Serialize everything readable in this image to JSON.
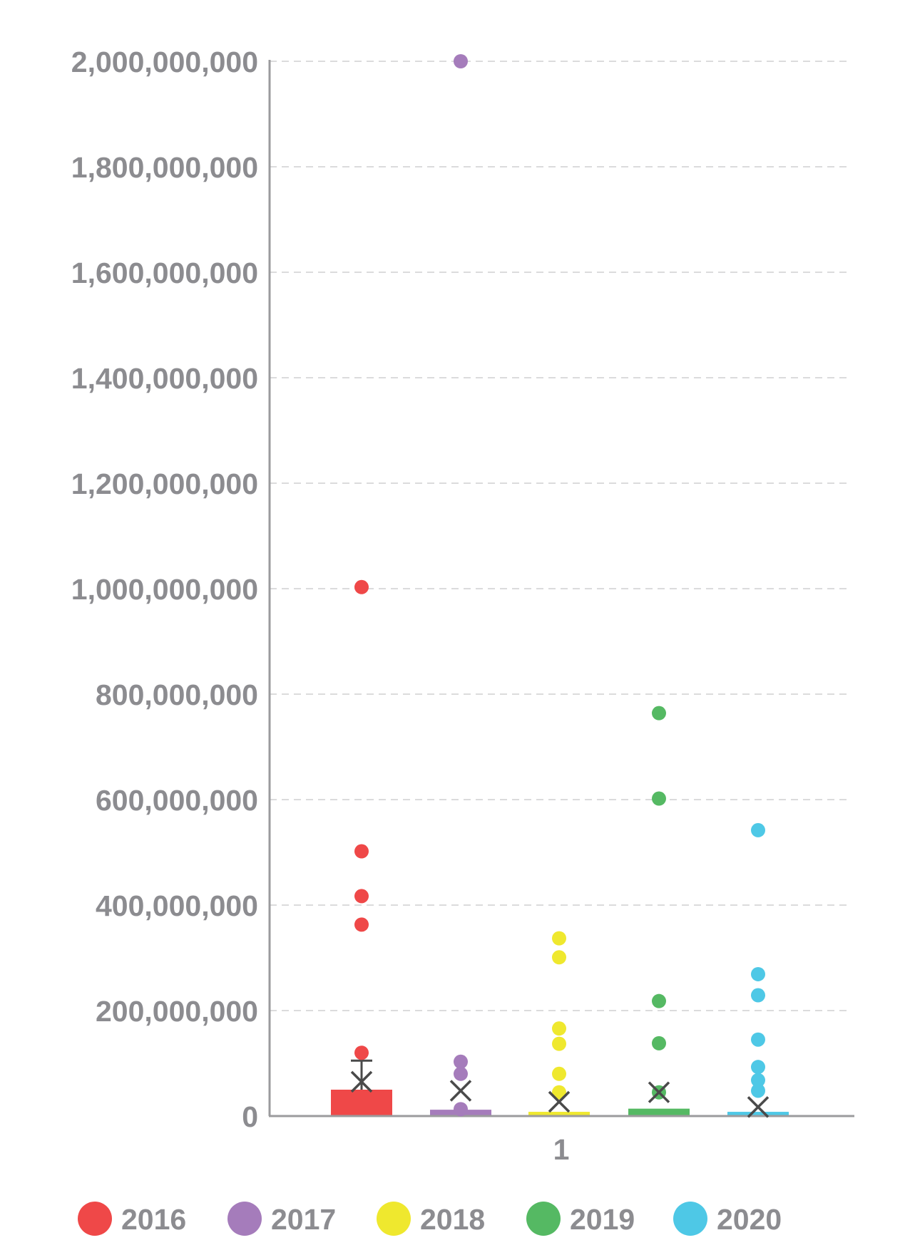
{
  "chart_data": {
    "type": "box",
    "title": "",
    "xlabel": "",
    "ylabel": "",
    "ylim": [
      0,
      2000000000
    ],
    "y_ticks": [
      0,
      200000000,
      400000000,
      600000000,
      800000000,
      1000000000,
      1200000000,
      1400000000,
      1600000000,
      1800000000,
      2000000000
    ],
    "y_tick_labels": [
      "0",
      "200,000,000",
      "400,000,000",
      "600,000,000",
      "800,000,000",
      "1,000,000,000",
      "1,200,000,000",
      "1,400,000,000",
      "1,600,000,000",
      "1,800,000,000",
      "2,000,000,000"
    ],
    "x_tick_labels": [
      "1"
    ],
    "grid": true,
    "legend_position": "bottom",
    "series": [
      {
        "name": "2016",
        "color": "#ef4848",
        "box": {
          "q1": 0,
          "q3": 50000000
        },
        "whisker_max": 105000000,
        "mean": 65000000,
        "outliers": [
          120000000,
          363000000,
          417000000,
          502000000,
          1003000000
        ]
      },
      {
        "name": "2017",
        "color": "#a57cbb",
        "box": {
          "q1": 0,
          "q3": 12000000
        },
        "whisker_max": null,
        "mean": 48000000,
        "outliers": [
          13000000,
          80000000,
          103000000,
          2000000000
        ]
      },
      {
        "name": "2018",
        "color": "#efe82e",
        "box": {
          "q1": 0,
          "q3": 8000000
        },
        "whisker_max": null,
        "mean": 27000000,
        "outliers": [
          45000000,
          80000000,
          137000000,
          166000000,
          301000000,
          337000000
        ]
      },
      {
        "name": "2019",
        "color": "#55b963",
        "box": {
          "q1": 0,
          "q3": 14000000
        },
        "whisker_max": null,
        "mean": 45000000,
        "outliers": [
          45000000,
          138000000,
          218000000,
          602000000,
          764000000
        ]
      },
      {
        "name": "2020",
        "color": "#4ec8e6",
        "box": {
          "q1": 0,
          "q3": 8000000
        },
        "whisker_max": null,
        "mean": 17000000,
        "outliers": [
          48000000,
          68000000,
          93000000,
          145000000,
          229000000,
          269000000,
          542000000
        ]
      }
    ]
  }
}
